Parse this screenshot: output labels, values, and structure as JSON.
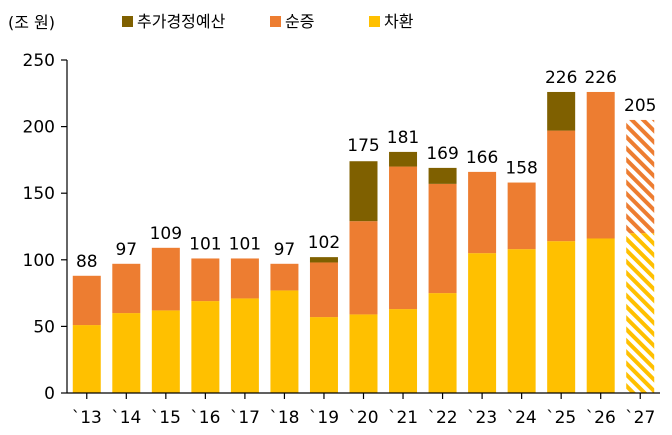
{
  "chart_data": {
    "type": "bar",
    "stacked": true,
    "unit_label": "(조 원)",
    "categories": [
      "`13",
      "`14",
      "`15",
      "`16",
      "`17",
      "`18",
      "`19",
      "`20",
      "`21",
      "`22",
      "`23",
      "`24",
      "`25",
      "`26",
      "`27"
    ],
    "series": [
      {
        "name": "차환",
        "color": "#FFC000",
        "values": [
          51,
          60,
          62,
          69,
          71,
          77,
          57,
          59,
          63,
          75,
          105,
          108,
          114,
          116,
          120
        ]
      },
      {
        "name": "순증",
        "color": "#ED7D31",
        "values": [
          37,
          37,
          47,
          32,
          30,
          20,
          41,
          70,
          107,
          82,
          61,
          50,
          83,
          110,
          85
        ]
      },
      {
        "name": "추가경정예산",
        "color": "#7F6000",
        "values": [
          0,
          0,
          0,
          0,
          0,
          0,
          4,
          45,
          11,
          12,
          0,
          0,
          29,
          0,
          0
        ]
      }
    ],
    "legend_order": [
      "추가경정예산",
      "순증",
      "차환"
    ],
    "totals": [
      "88",
      "97",
      "109",
      "101",
      "101",
      "97",
      "102",
      "175",
      "181",
      "169",
      "166",
      "158",
      "226",
      "226",
      "205"
    ],
    "projected_categories": [
      "`27"
    ],
    "ylim": [
      0,
      250
    ],
    "yticks": [
      "0",
      "50",
      "100",
      "150",
      "200",
      "250"
    ],
    "grid": false,
    "legend_position": "top"
  }
}
